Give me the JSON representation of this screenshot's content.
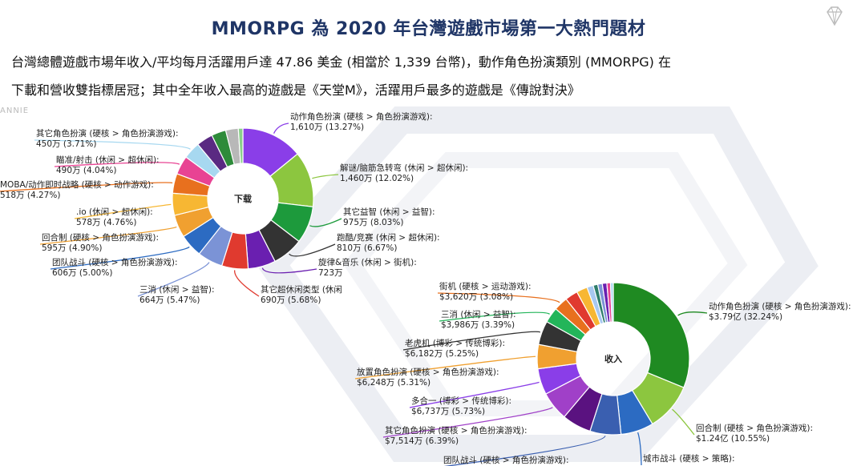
{
  "page": {
    "title": "MMORPG 為 2020 年台灣遊戲市場第一大熱門題材",
    "description_line1": "台灣總體遊戲市場年收入/平均每月活躍用戶達 47.86 美金 (相當於 1,339 台幣)，動作角色扮演類別 (MMORPG) 在",
    "description_line2": "下載和營收雙指標居冠；其中全年收入最高的遊戲是《天堂M》，活躍用戶最多的遊戲是《傳說對決》",
    "watermark": "ANNIE",
    "logo_icon": "diamond-icon"
  },
  "chart_data": [
    {
      "type": "pie",
      "center_label": "下载",
      "slices": [
        {
          "label": "动作角色扮演 (硬核 > 角色扮演游戏):",
          "value_text": "1,610万 (13.27%)",
          "value": 1610,
          "percent": 13.27,
          "color": "#8a3ee8"
        },
        {
          "label": "解谜/脑筋急转弯 (休闲 > 超休闲):",
          "value_text": "1,460万 (12.02%)",
          "value": 1460,
          "percent": 12.02,
          "color": "#8cc63f"
        },
        {
          "label": "其它益智 (休闲 > 益智):",
          "value_text": "975万 (8.03%)",
          "value": 975,
          "percent": 8.03,
          "color": "#1d9a3c"
        },
        {
          "label": "跑酷/竞赛 (休闲 > 超休闲):",
          "value_text": "810万 (6.67%)",
          "value": 810,
          "percent": 6.67,
          "color": "#333333"
        },
        {
          "label": "旋律&音乐 (休闲 > 街机):",
          "value_text": "723万",
          "value": 723,
          "percent": 5.95,
          "color": "#6a1fb0"
        },
        {
          "label": "其它超休闲类型 (休闲",
          "value_text": "690万 (5.68%)",
          "value": 690,
          "percent": 5.68,
          "color": "#e03a2f"
        },
        {
          "label": "三消 (休闲 > 益智):",
          "value_text": "664万 (5.47%)",
          "value": 664,
          "percent": 5.47,
          "color": "#7b93d6"
        },
        {
          "label": "团队战斗 (硬核 > 角色扮演游戏):",
          "value_text": "606万 (5.00%)",
          "value": 606,
          "percent": 5.0,
          "color": "#2c6bc2"
        },
        {
          "label": "回合制 (硬核 > 角色扮演游戏):",
          "value_text": "595万 (4.90%)",
          "value": 595,
          "percent": 4.9,
          "color": "#f0a030"
        },
        {
          "label": ".io (休闲 > 超休闲):",
          "value_text": "578万 (4.76%)",
          "value": 578,
          "percent": 4.76,
          "color": "#f7b733"
        },
        {
          "label": "MOBA/动作即时战略 (硬核 > 动作游戏):",
          "value_text": "518万 (4.27%)",
          "value": 518,
          "percent": 4.27,
          "color": "#e8701e"
        },
        {
          "label": "瞄准/射击 (休闲 > 超休闲):",
          "value_text": "490万 (4.04%)",
          "value": 490,
          "percent": 4.04,
          "color": "#e84393"
        },
        {
          "label": "其它角色扮演 (硬核 > 角色扮演游戏):",
          "value_text": "450万 (3.71%)",
          "value": 450,
          "percent": 3.71,
          "color": "#a7d8f0"
        },
        {
          "label": "",
          "value_text": "",
          "value": 430,
          "percent": 3.54,
          "color": "#5a2a82"
        },
        {
          "label": "",
          "value_text": "",
          "value": 380,
          "percent": 3.13,
          "color": "#2e8b3a"
        },
        {
          "label": "",
          "value_text": "",
          "value": 330,
          "percent": 2.72,
          "color": "#b8b8b8"
        },
        {
          "label": "",
          "value_text": "",
          "value": 120,
          "percent": 0.99,
          "color": "#8ad08a"
        }
      ]
    },
    {
      "type": "pie",
      "center_label": "收入",
      "slices": [
        {
          "label": "动作角色扮演 (硬核 > 角色扮演游戏):",
          "value_text": "$3.79亿 (32.24%)",
          "value": 32.24,
          "percent": 32.24,
          "color": "#1f8a22"
        },
        {
          "label": "回合制 (硬核 > 角色扮演游戏):",
          "value_text": "$1.24亿 (10.55%)",
          "value": 10.55,
          "percent": 10.55,
          "color": "#8cc63f"
        },
        {
          "label": "城市战斗 (硬核 > 策略):",
          "value_text": "",
          "value": 7.2,
          "percent": 7.2,
          "color": "#2c6bc2"
        },
        {
          "label": "团队战斗 (硬核 > 角色扮演游戏):",
          "value_text": "",
          "value": 6.8,
          "percent": 6.8,
          "color": "#3a5fb0"
        },
        {
          "label": "",
          "value_text": "",
          "value": 6.4,
          "percent": 6.4,
          "color": "#5a1280"
        },
        {
          "label": "其它角色扮演 (硬核 > 角色扮演游戏):",
          "value_text": "$7,514万 (6.39%)",
          "value": 6.39,
          "percent": 6.39,
          "color": "#a040c8"
        },
        {
          "label": "多合一 (博彩 > 传统博彩):",
          "value_text": "$6,737万 (5.73%)",
          "value": 5.73,
          "percent": 5.73,
          "color": "#8a3ee8"
        },
        {
          "label": "放置角色扮演 (硬核 > 角色扮演游戏):",
          "value_text": "$6,248万 (5.31%)",
          "value": 5.31,
          "percent": 5.31,
          "color": "#f0a030"
        },
        {
          "label": "老虎机 (博彩 > 传统博彩):",
          "value_text": "$6,182万 (5.25%)",
          "value": 5.25,
          "percent": 5.25,
          "color": "#333333"
        },
        {
          "label": "三消 (休闲 > 益智):",
          "value_text": "$3,986万 (3.39%)",
          "value": 3.39,
          "percent": 3.39,
          "color": "#23b55a"
        },
        {
          "label": "街机 (硬核 > 运动游戏):",
          "value_text": "$3,620万 (3.08%)",
          "value": 3.08,
          "percent": 3.08,
          "color": "#e8701e"
        },
        {
          "label": "",
          "value_text": "",
          "value": 2.8,
          "percent": 2.8,
          "color": "#e03a2f"
        },
        {
          "label": "",
          "value_text": "",
          "value": 2.4,
          "percent": 2.4,
          "color": "#f7b733"
        },
        {
          "label": "",
          "value_text": "",
          "value": 1.4,
          "percent": 1.4,
          "color": "#a7c8f0"
        },
        {
          "label": "",
          "value_text": "",
          "value": 1.0,
          "percent": 1.0,
          "color": "#2e7d6a"
        },
        {
          "label": "",
          "value_text": "",
          "value": 1.0,
          "percent": 1.0,
          "color": "#7b93d6"
        },
        {
          "label": "",
          "value_text": "",
          "value": 1.0,
          "percent": 1.0,
          "color": "#6a1fb0"
        },
        {
          "label": "",
          "value_text": "",
          "value": 0.8,
          "percent": 0.8,
          "color": "#e84393"
        },
        {
          "label": "",
          "value_text": "",
          "value": 0.6,
          "percent": 0.6,
          "color": "#a7d8f0"
        }
      ]
    }
  ]
}
